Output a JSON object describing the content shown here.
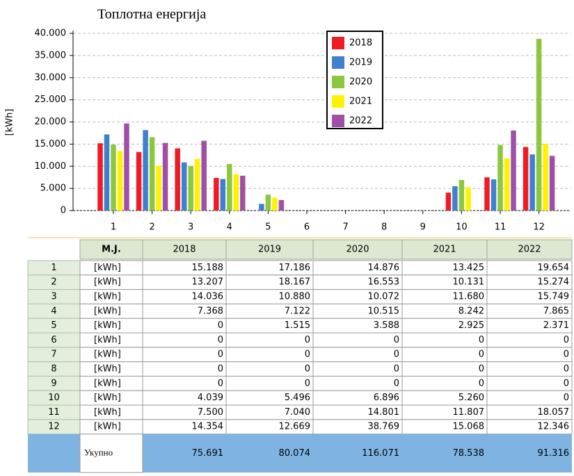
{
  "chart_data": {
    "type": "bar",
    "title": "Топлотна енергија",
    "y_label": "[kWh]",
    "categories": [
      "1",
      "2",
      "3",
      "4",
      "5",
      "6",
      "7",
      "8",
      "9",
      "10",
      "11",
      "12"
    ],
    "series": [
      {
        "name": "2018",
        "color": "#ee1c25",
        "values": [
          15188,
          13207,
          14036,
          7368,
          0,
          0,
          0,
          0,
          0,
          4039,
          7500,
          14354
        ]
      },
      {
        "name": "2019",
        "color": "#3f80cf",
        "values": [
          17186,
          18167,
          10880,
          7122,
          1515,
          0,
          0,
          0,
          0,
          5496,
          7040,
          12669
        ]
      },
      {
        "name": "2020",
        "color": "#8dc63f",
        "values": [
          14876,
          16553,
          10072,
          10515,
          3588,
          0,
          0,
          0,
          0,
          6896,
          14801,
          38769
        ]
      },
      {
        "name": "2021",
        "color": "#fff200",
        "values": [
          13425,
          10131,
          11680,
          8242,
          2925,
          0,
          0,
          0,
          0,
          5260,
          11807,
          15068
        ]
      },
      {
        "name": "2022",
        "color": "#a14fa6",
        "values": [
          19654,
          15274,
          15749,
          7865,
          2371,
          0,
          0,
          0,
          0,
          0,
          18057,
          12346
        ]
      }
    ],
    "ylim": [
      0,
      40000
    ],
    "yticks": [
      0,
      {
        "value": 5000,
        "label": "5.000"
      },
      {
        "value": 10000,
        "label": "10.000"
      },
      {
        "value": 15000,
        "label": "15.000"
      },
      {
        "value": 20000,
        "label": "20.000"
      },
      {
        "value": 25000,
        "label": "25.000"
      },
      {
        "value": 30000,
        "label": "30.000"
      },
      {
        "value": 35000,
        "label": "35.000"
      },
      {
        "value": 40000,
        "label": "40.000"
      }
    ],
    "grid": true,
    "legend": "top"
  },
  "table": {
    "header": [
      "M.J.",
      "2018",
      "2019",
      "2020",
      "2021",
      "2022"
    ],
    "rows": [
      [
        "1",
        "[kWh]",
        "15.188",
        "17.186",
        "14.876",
        "13.425",
        "19.654"
      ],
      [
        "2",
        "[kWh]",
        "13.207",
        "18.167",
        "16.553",
        "10.131",
        "15.274"
      ],
      [
        "3",
        "[kWh]",
        "14.036",
        "10.880",
        "10.072",
        "11.680",
        "15.749"
      ],
      [
        "4",
        "[kWh]",
        "7.368",
        "7.122",
        "10.515",
        "8.242",
        "7.865"
      ],
      [
        "5",
        "[kWh]",
        "0",
        "1.515",
        "3.588",
        "2.925",
        "2.371"
      ],
      [
        "6",
        "[kWh]",
        "0",
        "0",
        "0",
        "0",
        "0"
      ],
      [
        "7",
        "[kWh]",
        "0",
        "0",
        "0",
        "0",
        "0"
      ],
      [
        "8",
        "[kWh]",
        "0",
        "0",
        "0",
        "0",
        "0"
      ],
      [
        "9",
        "[kWh]",
        "0",
        "0",
        "0",
        "0",
        "0"
      ],
      [
        "10",
        "[kWh]",
        "4.039",
        "5.496",
        "6.896",
        "5.260",
        "0"
      ],
      [
        "11",
        "[kWh]",
        "7.500",
        "7.040",
        "14.801",
        "11.807",
        "18.057"
      ],
      [
        "12",
        "[kWh]",
        "14.354",
        "12.669",
        "38.769",
        "15.068",
        "12.346"
      ]
    ],
    "total": [
      "Укупно",
      "75.691",
      "80.074",
      "116.071",
      "78.538",
      "91.316"
    ]
  }
}
